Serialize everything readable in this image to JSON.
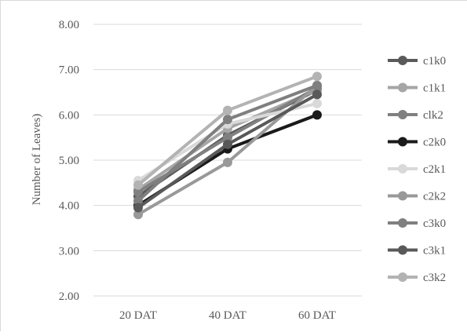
{
  "chart_data": {
    "type": "line",
    "title": "",
    "xlabel": "",
    "ylabel": "Number of Leaves)",
    "ylim": [
      2.0,
      8.0
    ],
    "yticks": [
      "2.00",
      "3.00",
      "4.00",
      "5.00",
      "6.00",
      "7.00",
      "8.00"
    ],
    "categories": [
      "20 DAT",
      "40 DAT",
      "60 DAT"
    ],
    "grid": true,
    "legend_position": "right",
    "series": [
      {
        "name": "c1k0",
        "color": "#5a5a5a",
        "values": [
          4.2,
          5.55,
          6.55
        ]
      },
      {
        "name": "c1k1",
        "color": "#a6a6a6",
        "values": [
          4.35,
          5.7,
          6.55
        ]
      },
      {
        "name": "clk2",
        "color": "#808080",
        "values": [
          4.3,
          5.5,
          6.6
        ]
      },
      {
        "name": "c2k0",
        "color": "#1a1a1a",
        "values": [
          4.0,
          5.25,
          6.0
        ]
      },
      {
        "name": "c2k1",
        "color": "#d9d9d9",
        "values": [
          4.55,
          5.8,
          6.25
        ]
      },
      {
        "name": "c2k2",
        "color": "#999999",
        "values": [
          3.8,
          4.95,
          6.65
        ]
      },
      {
        "name": "c3k0",
        "color": "#7f7f7f",
        "values": [
          4.1,
          5.9,
          6.65
        ]
      },
      {
        "name": "c3k1",
        "color": "#595959",
        "values": [
          3.95,
          5.35,
          6.45
        ]
      },
      {
        "name": "c3k2",
        "color": "#b3b3b3",
        "values": [
          4.45,
          6.1,
          6.85
        ]
      }
    ]
  }
}
